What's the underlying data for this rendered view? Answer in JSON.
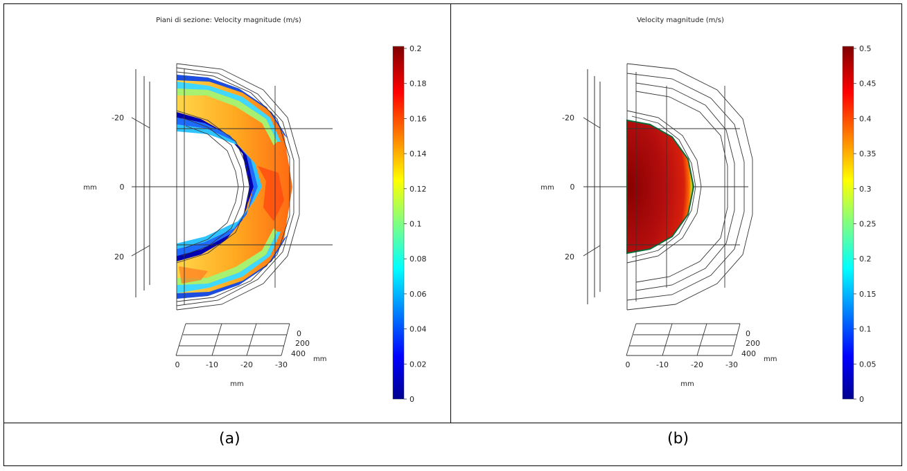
{
  "panels": [
    {
      "title": "Piani di sezione: Velocity magnitude (m/s)",
      "caption": "(a)",
      "colorbar_ticks": [
        "0.2",
        "0.18",
        "0.16",
        "0.14",
        "0.12",
        "0.1",
        "0.08",
        "0.06",
        "0.04",
        "0.02",
        "0"
      ],
      "left_axis_label": "mm",
      "left_axis_ticks": [
        "-20",
        "0",
        "20"
      ],
      "bottom_axis_label": "mm",
      "bottom_axis_ticks": [
        "0",
        "-10",
        "-20",
        "-30"
      ],
      "depth_axis_ticks": [
        "0",
        "200",
        "400"
      ],
      "depth_axis_label": "mm"
    },
    {
      "title": "Velocity magnitude (m/s)",
      "caption": "(b)",
      "colorbar_ticks": [
        "0.5",
        "0.45",
        "0.4",
        "0.35",
        "0.3",
        "0.25",
        "0.2",
        "0.15",
        "0.1",
        "0.05",
        "0"
      ],
      "left_axis_label": "mm",
      "left_axis_ticks": [
        "-20",
        "0",
        "20"
      ],
      "bottom_axis_label": "mm",
      "bottom_axis_ticks": [
        "0",
        "-10",
        "-20",
        "-30"
      ],
      "depth_axis_ticks": [
        "0",
        "200",
        "400"
      ],
      "depth_axis_label": "mm"
    }
  ],
  "colors": {
    "jet_low": "#00008f",
    "jet_high": "#800000"
  }
}
